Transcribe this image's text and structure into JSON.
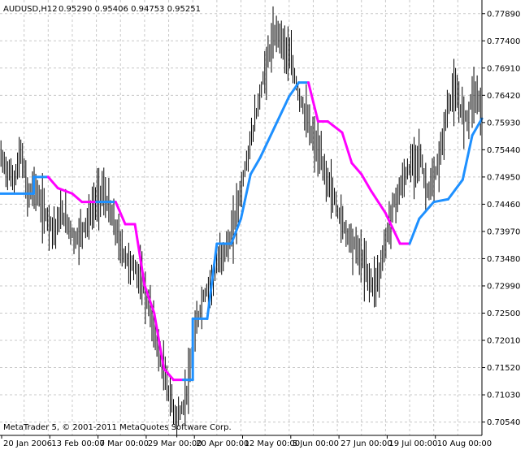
{
  "header": {
    "symbol": "AUDUSD,H12",
    "ohlc": "0.95290 0.95406 0.94753 0.95251"
  },
  "copyright": "MetaTrader 5, © 2001-2011 MetaQuotes Software Corp.",
  "colors": {
    "price_bars": "#000000",
    "uptrend": "#1e90ff",
    "downtrend": "#ff00ff",
    "grid": "#c8c8c8",
    "axis": "#000000"
  },
  "chart_data": {
    "type": "line",
    "title": "AUDUSD,H12",
    "xlabel": "",
    "ylabel": "",
    "grid": true,
    "ylim": [
      0.703,
      0.78135
    ],
    "y_ticks": [
      "0.77890",
      "0.77400",
      "0.76910",
      "0.76420",
      "0.75930",
      "0.75440",
      "0.74950",
      "0.74460",
      "0.73970",
      "0.73480",
      "0.72990",
      "0.72500",
      "0.72010",
      "0.71520",
      "0.71030",
      "0.70540"
    ],
    "x_ticks": [
      "20 Jan 2006",
      "13 Feb 00:00",
      "7 Mar 00:00",
      "29 Mar 00:00",
      "20 Apr 00:00",
      "12 May 00:00",
      "5 Jun 00:00",
      "27 Jun 00:00",
      "19 Jul 00:00",
      "10 Aug 00:00"
    ],
    "price_close": [
      0.753,
      0.7505,
      0.749,
      0.754,
      0.746,
      0.748,
      0.744,
      0.742,
      0.74,
      0.743,
      0.741,
      0.738,
      0.74,
      0.742,
      0.745,
      0.747,
      0.744,
      0.74,
      0.736,
      0.734,
      0.733,
      0.73,
      0.726,
      0.72,
      0.715,
      0.71,
      0.706,
      0.708,
      0.714,
      0.723,
      0.728,
      0.73,
      0.734,
      0.736,
      0.738,
      0.744,
      0.75,
      0.756,
      0.762,
      0.768,
      0.773,
      0.776,
      0.773,
      0.77,
      0.765,
      0.761,
      0.757,
      0.754,
      0.75,
      0.747,
      0.743,
      0.74,
      0.738,
      0.736,
      0.733,
      0.73,
      0.732,
      0.738,
      0.744,
      0.747,
      0.75,
      0.752,
      0.754,
      0.747,
      0.748,
      0.753,
      0.761,
      0.765,
      0.762,
      0.76,
      0.765,
      0.7625
    ],
    "series": [
      {
        "x": [
          0,
          0.07,
          0.07,
          0.1,
          0.12,
          0.15,
          0.17,
          0.2,
          0.22,
          0.24,
          0.26,
          0.28,
          0.3,
          0.32,
          0.34,
          0.36,
          0.38,
          0.4,
          0.4,
          0.43,
          0.43,
          0.45,
          0.48,
          0.5,
          0.52,
          0.54,
          0.57,
          0.6,
          0.62,
          0.64,
          0.66,
          0.68,
          0.71,
          0.73,
          0.75,
          0.77,
          0.8,
          0.83,
          0.85,
          0.87,
          0.9,
          0.93,
          0.96,
          0.98,
          1.0
        ],
        "values": [
          0.7465,
          0.7465,
          0.7495,
          0.7495,
          0.7475,
          0.7465,
          0.745,
          0.745,
          0.745,
          0.745,
          0.741,
          0.741,
          0.73,
          0.725,
          0.715,
          0.713,
          0.713,
          0.713,
          0.724,
          0.724,
          0.724,
          0.7375,
          0.7375,
          0.742,
          0.75,
          0.753,
          0.7585,
          0.764,
          0.7665,
          0.7665,
          0.7595,
          0.7595,
          0.7575,
          0.752,
          0.75,
          0.747,
          0.743,
          0.7375,
          0.7375,
          0.742,
          0.745,
          0.7455,
          0.749,
          0.757,
          0.76
        ]
      }
    ]
  }
}
